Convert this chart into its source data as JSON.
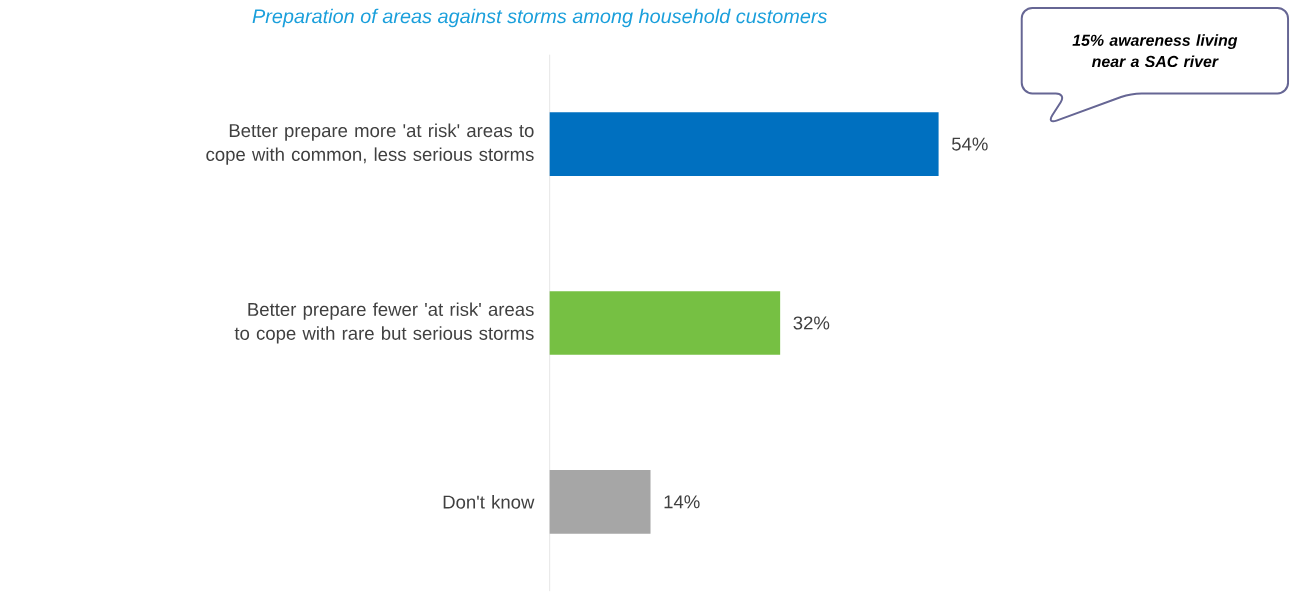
{
  "chart_data": {
    "type": "bar",
    "orientation": "horizontal",
    "title": "Preparation of areas against storms among household customers",
    "categories": [
      "Better prepare more 'at risk' areas to cope with common, less serious storms",
      "Better prepare fewer 'at risk' areas to cope with rare but serious storms",
      "Don't know"
    ],
    "values": [
      54,
      32,
      14
    ],
    "colors": [
      "#0070c0",
      "#76c043",
      "#a6a6a6"
    ],
    "value_labels": [
      "54%",
      "32%",
      "14%"
    ],
    "annotations": [
      "**15% awareness living near a SAC river**"
    ]
  }
}
